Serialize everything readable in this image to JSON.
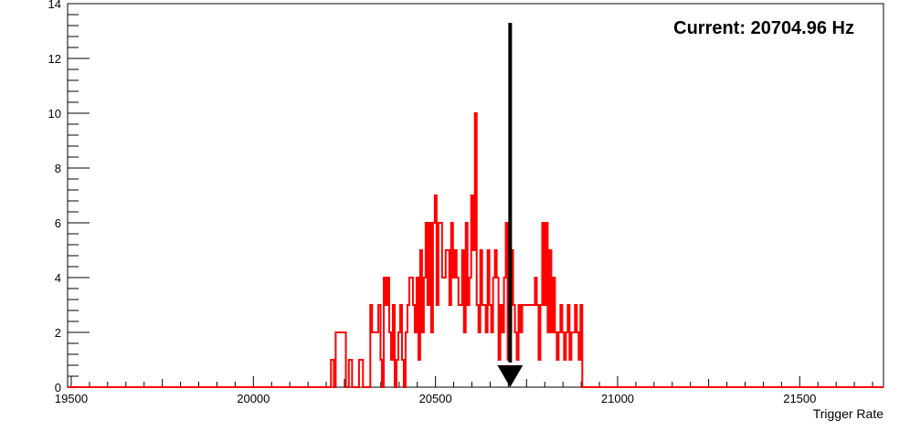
{
  "chart_data": {
    "type": "histogram",
    "xlabel": "Trigger Rate",
    "ylabel": "",
    "xlim": [
      19490,
      21730
    ],
    "ylim": [
      0,
      14
    ],
    "x_ticks": [
      19500,
      20000,
      20500,
      21000,
      21500
    ],
    "y_ticks": [
      0,
      2,
      4,
      6,
      8,
      10,
      12,
      14
    ],
    "grid": false,
    "legend": "none",
    "annotation": "Current: 20704.96 Hz",
    "current_value": 20704.96,
    "series": [
      {
        "color": "#ff0000",
        "x_edges": [
          19490,
          20213,
          20221,
          20226,
          20254,
          20262,
          20271,
          20278,
          20290,
          20296,
          20301,
          20321,
          20326,
          20333,
          20338,
          20343,
          20349,
          20353,
          20358,
          20363,
          20368,
          20373,
          20378,
          20383,
          20388,
          20393,
          20398,
          20403,
          20408,
          20413,
          20418,
          20423,
          20428,
          20433,
          20438,
          20443,
          20448,
          20453,
          20458,
          20463,
          20468,
          20473,
          20478,
          20483,
          20488,
          20493,
          20498,
          20503,
          20508,
          20513,
          20518,
          20523,
          20528,
          20533,
          20538,
          20543,
          20548,
          20553,
          20558,
          20563,
          20568,
          20573,
          20578,
          20583,
          20588,
          20593,
          20598,
          20603,
          20608,
          20613,
          20618,
          20623,
          20628,
          20633,
          20638,
          20643,
          20648,
          20653,
          20658,
          20663,
          20668,
          20673,
          20678,
          20683,
          20688,
          20693,
          20698,
          20703,
          20708,
          20713,
          20718,
          20723,
          20728,
          20733,
          20738,
          20743,
          20748,
          20753,
          20758,
          20763,
          20768,
          20773,
          20778,
          20783,
          20788,
          20793,
          20798,
          20803,
          20808,
          20813,
          20818,
          20823,
          20828,
          20833,
          20838,
          20843,
          20848,
          20853,
          20858,
          20863,
          20868,
          20873,
          20878,
          20883,
          20888,
          20893,
          20898,
          20903,
          21730
        ],
        "counts": [
          0,
          1,
          0,
          2,
          0,
          1,
          0,
          0,
          1,
          1,
          0,
          3,
          2,
          2,
          2,
          3,
          1,
          0,
          4,
          3,
          4,
          2,
          1,
          3,
          0,
          1,
          2,
          3,
          1,
          0,
          2,
          3,
          4,
          4,
          3,
          2,
          4,
          1,
          5,
          2,
          4,
          6,
          3,
          6,
          2,
          6,
          7,
          3,
          6,
          6,
          4,
          4,
          5,
          5,
          3,
          6,
          4,
          5,
          4,
          3,
          3,
          5,
          2,
          6,
          3,
          4,
          7,
          5,
          10,
          3,
          2,
          5,
          3,
          3,
          2,
          5,
          3,
          2,
          4,
          5,
          4,
          1,
          3,
          2,
          4,
          6,
          1,
          2,
          5,
          3,
          2,
          1,
          3,
          2,
          3,
          3,
          3,
          3,
          3,
          3,
          3,
          4,
          3,
          1,
          3,
          6,
          3,
          6,
          2,
          5,
          2,
          4,
          2,
          1,
          2,
          3,
          2,
          1,
          2,
          3,
          1,
          2,
          2,
          3,
          2,
          1,
          3,
          0
        ]
      }
    ]
  }
}
